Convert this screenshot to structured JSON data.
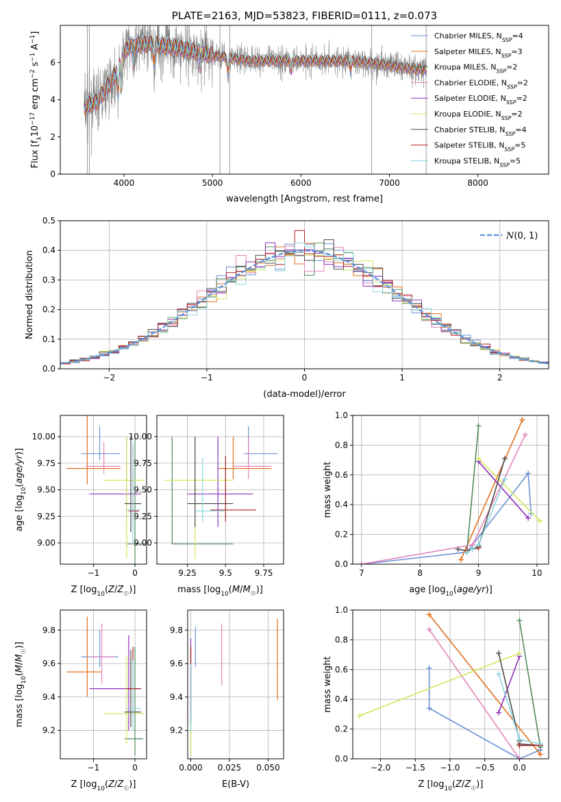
{
  "colors": [
    "#6a8fd6",
    "#e36f1e",
    "#4f8a5c",
    "#e383b8",
    "#8b2fb8",
    "#d4e55a",
    "#4a4a4a",
    "#b01c1c",
    "#8ad5e0"
  ],
  "chart_data": [
    {
      "id": "spectrum",
      "type": "line",
      "title": "PLATE=2163, MJD=53823, FIBERID=0111, z=0.073",
      "xlabel": "wavelength [Angstrom, rest frame]",
      "ylabel": "Flux [fλ10⁻¹⁷ erg cm⁻² s⁻¹ A⁻¹]",
      "xlim": [
        3280,
        8800
      ],
      "ylim": [
        0,
        8
      ],
      "xticks": [
        4000,
        5000,
        6000,
        7000,
        8000
      ],
      "yticks": [
        0,
        2,
        4,
        6
      ],
      "grid": false,
      "legend_position": "top-right",
      "data_color": "#808080",
      "continuum": {
        "x": [
          3550,
          3700,
          3900,
          4050,
          4300,
          4600,
          5000,
          5400,
          6000,
          6500,
          6800,
          7200,
          7420
        ],
        "y": [
          3.6,
          3.9,
          5.3,
          6.9,
          7.0,
          6.8,
          6.4,
          6.1,
          6.1,
          6.1,
          6.0,
          5.7,
          5.6
        ]
      },
      "legend": [
        "Chabrier MILES, N_SSP=4",
        "Salpeter MILES, N_SSP=3",
        "Kroupa MILES, N_SSP=2",
        "Chabrier ELODIE, N_SSP=2",
        "Salpeter ELODIE, N_SSP=2",
        "Kroupa ELODIE, N_SSP=2",
        "Chabrier STELIB, N_SSP=4",
        "Salpeter STELIB, N_SSP=5",
        "Kroupa STELIB, N_SSP=5"
      ]
    },
    {
      "id": "residuals",
      "type": "step",
      "xlabel": "(data-model)/error",
      "ylabel": "Normed distribution",
      "xlim": [
        -2.5,
        2.5
      ],
      "ylim": [
        0,
        0.5
      ],
      "xticks": [
        -2,
        -1,
        0,
        1,
        2
      ],
      "yticks": [
        0.0,
        0.1,
        0.2,
        0.3,
        0.4,
        0.5
      ],
      "grid": true,
      "bin_width": 0.1,
      "legend": [
        "N(0,1)"
      ],
      "legend_position": "top-right",
      "reference_color": "#5b8fd6"
    },
    {
      "id": "age-vs-z",
      "type": "errorbar",
      "xlabel": "Z [log10(Z/Z☉)]",
      "ylabel": "age [log10(age/yr)]",
      "xlim": [
        -1.8,
        0.28
      ],
      "ylim": [
        8.8,
        10.2
      ],
      "xticks": [
        -1,
        0
      ],
      "yticks": [
        9.0,
        9.25,
        9.5,
        9.75,
        10.0
      ],
      "grid": true,
      "points": [
        {
          "x": -0.85,
          "xlo": -1.3,
          "xhi": -0.35,
          "y": 9.84,
          "ylo": 9.78,
          "yhi": 10.1,
          "c": 0
        },
        {
          "x": -1.15,
          "xlo": -1.65,
          "xhi": -0.35,
          "y": 9.7,
          "ylo": 9.55,
          "yhi": 10.2,
          "c": 1
        },
        {
          "x": 0.0,
          "xlo": -0.2,
          "xhi": 0.25,
          "y": 8.99,
          "ylo": 8.8,
          "yhi": 10.0,
          "c": 2
        },
        {
          "x": -0.75,
          "xlo": -1.2,
          "xhi": -0.35,
          "y": 9.72,
          "ylo": 9.65,
          "yhi": 9.95,
          "c": 3
        },
        {
          "x": -0.2,
          "xlo": -1.1,
          "xhi": 0.15,
          "y": 9.46,
          "ylo": 9.2,
          "yhi": 10.0,
          "c": 4
        },
        {
          "x": -0.2,
          "xlo": -0.75,
          "xhi": 0.22,
          "y": 9.59,
          "ylo": 8.85,
          "yhi": 10.0,
          "c": 5
        },
        {
          "x": -0.1,
          "xlo": -0.25,
          "xhi": 0.15,
          "y": 9.37,
          "ylo": 9.1,
          "yhi": 10.0,
          "c": 6
        },
        {
          "x": -0.05,
          "xlo": -0.15,
          "xhi": 0.1,
          "y": 9.3,
          "ylo": 9.2,
          "yhi": 9.9,
          "c": 7
        },
        {
          "x": -0.05,
          "xlo": -0.22,
          "xhi": 0.12,
          "y": 9.31,
          "ylo": 9.0,
          "yhi": 9.95,
          "c": 8
        }
      ]
    },
    {
      "id": "age-vs-mass",
      "type": "errorbar",
      "xlabel": "mass [log10(M/M☉)]",
      "ylabel": "",
      "xlim": [
        9.05,
        9.88
      ],
      "ylim": [
        8.8,
        10.2
      ],
      "xticks": [
        9.25,
        9.5,
        9.75
      ],
      "yticks": [
        9.0,
        9.25,
        9.5,
        9.75,
        10.0
      ],
      "grid": true,
      "points": [
        {
          "x": 9.65,
          "xlo": 9.62,
          "xhi": 9.84,
          "y": 9.84,
          "ylo": 9.75,
          "yhi": 10.1,
          "c": 0
        },
        {
          "x": 9.55,
          "xlo": 9.45,
          "xhi": 9.8,
          "y": 9.7,
          "ylo": 9.6,
          "yhi": 10.0,
          "c": 1
        },
        {
          "x": 9.15,
          "xlo": 9.15,
          "xhi": 9.55,
          "y": 8.99,
          "ylo": 8.99,
          "yhi": 10.0,
          "c": 2
        },
        {
          "x": 9.65,
          "xlo": 9.55,
          "xhi": 9.8,
          "y": 9.72,
          "ylo": 9.6,
          "yhi": 10.0,
          "c": 3
        },
        {
          "x": 9.45,
          "xlo": 9.25,
          "xhi": 9.68,
          "y": 9.46,
          "ylo": 9.15,
          "yhi": 10.0,
          "c": 4
        },
        {
          "x": 9.3,
          "xlo": 9.1,
          "xhi": 9.55,
          "y": 9.59,
          "ylo": 8.85,
          "yhi": 10.0,
          "c": 5
        },
        {
          "x": 9.3,
          "xlo": 9.25,
          "xhi": 9.55,
          "y": 9.37,
          "ylo": 9.15,
          "yhi": 10.0,
          "c": 6
        },
        {
          "x": 9.5,
          "xlo": 9.4,
          "xhi": 9.7,
          "y": 9.31,
          "ylo": 9.2,
          "yhi": 9.82,
          "c": 7
        },
        {
          "x": 9.35,
          "xlo": 9.3,
          "xhi": 9.5,
          "y": 9.3,
          "ylo": 9.2,
          "yhi": 9.8,
          "c": 8
        }
      ]
    },
    {
      "id": "weight-vs-age",
      "type": "line",
      "xlabel": "age [log10(age/yr)]",
      "ylabel": "mass weight",
      "xlim": [
        6.85,
        10.2
      ],
      "ylim": [
        0,
        1
      ],
      "xticks": [
        7,
        8,
        9,
        10
      ],
      "yticks": [
        0.0,
        0.2,
        0.4,
        0.6,
        0.8,
        1.0
      ],
      "grid": true,
      "series": [
        {
          "c": 0,
          "x": [
            7.0,
            8.8,
            9.85,
            9.9
          ],
          "y": [
            0.0,
            0.08,
            0.61,
            0.34
          ]
        },
        {
          "c": 1,
          "x": [
            8.7,
            9.75
          ],
          "y": [
            0.03,
            0.97
          ]
        },
        {
          "c": 2,
          "x": [
            8.8,
            9.0
          ],
          "y": [
            0.08,
            0.93
          ]
        },
        {
          "c": 3,
          "x": [
            7.0,
            8.9,
            9.8
          ],
          "y": [
            0.0,
            0.13,
            0.87
          ]
        },
        {
          "c": 4,
          "x": [
            9.0,
            9.85
          ],
          "y": [
            0.69,
            0.31
          ]
        },
        {
          "c": 5,
          "x": [
            9.0,
            10.05
          ],
          "y": [
            0.71,
            0.29
          ]
        },
        {
          "c": 6,
          "x": [
            8.65,
            8.8,
            9.0,
            9.45
          ],
          "y": [
            0.1,
            0.09,
            0.12,
            0.71
          ]
        },
        {
          "c": 7,
          "x": [
            8.8,
            9.0
          ],
          "y": [
            0.09,
            0.11
          ]
        },
        {
          "c": 8,
          "x": [
            8.8,
            8.9,
            9.0,
            9.45
          ],
          "y": [
            0.08,
            0.1,
            0.13,
            0.57
          ]
        }
      ]
    },
    {
      "id": "mass-vs-z",
      "type": "errorbar",
      "xlabel": "Z [log10(Z/Z☉)]",
      "ylabel": "mass [log10(M/M☉)]",
      "xlim": [
        -1.8,
        0.28
      ],
      "ylim": [
        9.03,
        9.92
      ],
      "xticks": [
        -1,
        0
      ],
      "yticks": [
        9.2,
        9.4,
        9.6,
        9.8
      ],
      "grid": true,
      "points": [
        {
          "x": -0.85,
          "xlo": -1.3,
          "xhi": -0.4,
          "y": 9.64,
          "ylo": 9.58,
          "yhi": 9.8,
          "c": 0
        },
        {
          "x": -1.15,
          "xlo": -1.65,
          "xhi": -0.8,
          "y": 9.55,
          "ylo": 9.4,
          "yhi": 9.88,
          "c": 1
        },
        {
          "x": 0.0,
          "xlo": -0.25,
          "xhi": 0.2,
          "y": 9.15,
          "ylo": 9.05,
          "yhi": 9.7,
          "c": 2
        },
        {
          "x": -0.8,
          "xlo": -1.1,
          "xhi": -0.5,
          "y": 9.64,
          "ylo": 9.48,
          "yhi": 9.84,
          "c": 3
        },
        {
          "x": -0.15,
          "xlo": -1.1,
          "xhi": 0.15,
          "y": 9.45,
          "ylo": 9.2,
          "yhi": 9.77,
          "c": 4
        },
        {
          "x": -0.2,
          "xlo": -0.75,
          "xhi": 0.22,
          "y": 9.3,
          "ylo": 9.12,
          "yhi": 9.65,
          "c": 5
        },
        {
          "x": -0.1,
          "xlo": -0.25,
          "xhi": 0.15,
          "y": 9.31,
          "ylo": 9.22,
          "yhi": 9.68,
          "c": 6
        },
        {
          "x": -0.05,
          "xlo": -0.2,
          "xhi": 0.12,
          "y": 9.45,
          "ylo": 9.3,
          "yhi": 9.7,
          "c": 7
        },
        {
          "x": -0.05,
          "xlo": -0.22,
          "xhi": 0.15,
          "y": 9.33,
          "ylo": 9.2,
          "yhi": 9.62,
          "c": 8
        }
      ]
    },
    {
      "id": "mass-vs-ebv",
      "type": "errorbar",
      "xlabel": "E(B-V)",
      "ylabel": "",
      "xlim": [
        -0.002,
        0.06
      ],
      "ylim": [
        9.03,
        9.92
      ],
      "xticks": [
        0.0,
        0.025,
        0.05
      ],
      "xticklabels": [
        "0.000",
        "0.025",
        "0.050"
      ],
      "yticks": [
        9.2,
        9.4,
        9.6,
        9.8
      ],
      "grid": true,
      "points": [
        {
          "x": 0.003,
          "xlo": 0.003,
          "xhi": 0.003,
          "y": 9.65,
          "ylo": 9.58,
          "yhi": 9.82,
          "c": 0
        },
        {
          "x": 0.056,
          "xlo": 0.056,
          "xhi": 0.056,
          "y": 9.55,
          "ylo": 9.38,
          "yhi": 9.87,
          "c": 1
        },
        {
          "x": 0.0,
          "xlo": 0.0,
          "xhi": 0.0,
          "y": 9.15,
          "ylo": 9.05,
          "yhi": 9.7,
          "c": 2
        },
        {
          "x": 0.02,
          "xlo": 0.02,
          "xhi": 0.02,
          "y": 9.64,
          "ylo": 9.47,
          "yhi": 9.84,
          "c": 3
        },
        {
          "x": 0.0,
          "xlo": 0.0,
          "xhi": 0.0,
          "y": 9.45,
          "ylo": 9.25,
          "yhi": 9.75,
          "c": 4
        },
        {
          "x": 0.0,
          "xlo": 0.0,
          "xhi": 0.0,
          "y": 9.3,
          "ylo": 9.05,
          "yhi": 9.6,
          "c": 5
        },
        {
          "x": 0.0,
          "xlo": 0.0,
          "xhi": 0.0,
          "y": 9.31,
          "ylo": 9.25,
          "yhi": 9.6,
          "c": 6
        },
        {
          "x": 0.0,
          "xlo": 0.0,
          "xhi": 0.0,
          "y": 9.45,
          "ylo": 9.3,
          "yhi": 9.7,
          "c": 7
        },
        {
          "x": 0.0,
          "xlo": 0.0,
          "xhi": 0.0,
          "y": 9.33,
          "ylo": 9.2,
          "yhi": 9.6,
          "c": 8
        }
      ]
    },
    {
      "id": "weight-vs-z",
      "type": "line",
      "xlabel": "Z [log10(Z/Z☉)]",
      "ylabel": "mass weight",
      "xlim": [
        -2.4,
        0.42
      ],
      "ylim": [
        0,
        1
      ],
      "xticks": [
        -2.0,
        -1.5,
        -1.0,
        -0.5,
        0.0
      ],
      "xticklabels": [
        "−2.0",
        "−1.5",
        "−1.0",
        "−0.5",
        "0.0"
      ],
      "yticks": [
        0.0,
        0.2,
        0.4,
        0.6,
        0.8,
        1.0
      ],
      "grid": true,
      "series": [
        {
          "c": 0,
          "x": [
            -1.3,
            -1.3,
            0.0,
            0.3
          ],
          "y": [
            0.61,
            0.34,
            0.0,
            0.06
          ]
        },
        {
          "c": 1,
          "x": [
            -1.3,
            0.3
          ],
          "y": [
            0.97,
            0.03
          ]
        },
        {
          "c": 2,
          "x": [
            0.0,
            0.3
          ],
          "y": [
            0.93,
            0.08
          ]
        },
        {
          "c": 3,
          "x": [
            -1.3,
            0.0
          ],
          "y": [
            0.87,
            0.0
          ]
        },
        {
          "c": 4,
          "x": [
            -0.3,
            0.0
          ],
          "y": [
            0.31,
            0.69
          ]
        },
        {
          "c": 5,
          "x": [
            -2.3,
            0.0
          ],
          "y": [
            0.29,
            0.71
          ]
        },
        {
          "c": 6,
          "x": [
            -0.3,
            0.0,
            0.0,
            0.3
          ],
          "y": [
            0.71,
            0.12,
            0.1,
            0.09
          ]
        },
        {
          "c": 7,
          "x": [
            0.0,
            0.3
          ],
          "y": [
            0.09,
            0.09
          ]
        },
        {
          "c": 8,
          "x": [
            -0.3,
            0.0,
            0.3
          ],
          "y": [
            0.57,
            0.13,
            0.1
          ]
        }
      ]
    }
  ]
}
